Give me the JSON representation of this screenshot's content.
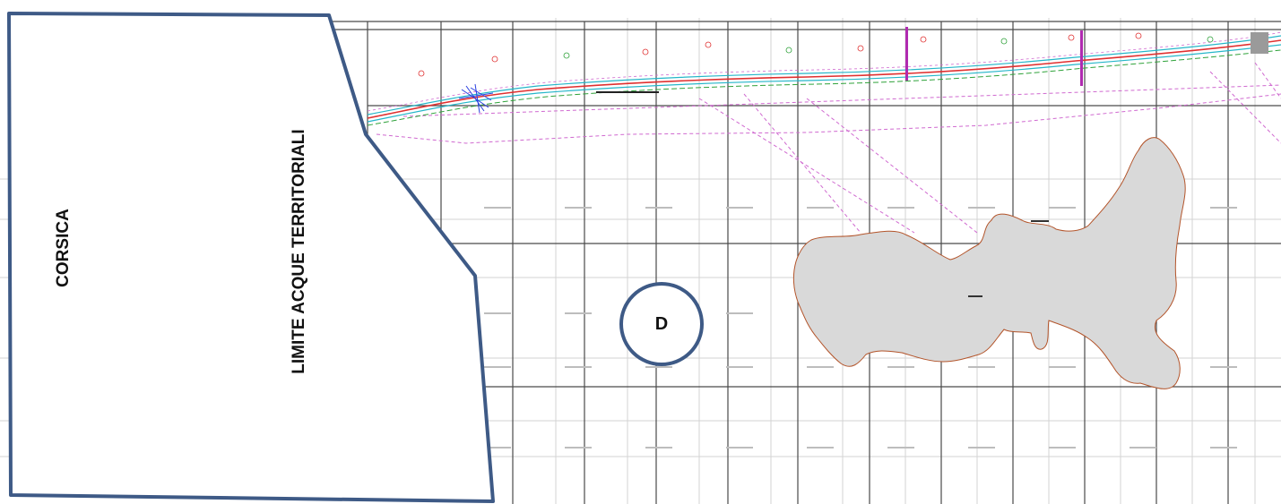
{
  "labels": {
    "corsica": "CORSICA",
    "territorial_limit": "LIMITE ACQUE TERRITORIALI",
    "zone_letter": "D"
  },
  "colors": {
    "outline": "#3e5a86",
    "island_fill": "#d9d9d9",
    "island_edge": "#b3542a",
    "grid_major": "#555555",
    "grid_minor": "#cfcfcf",
    "route_red": "#e03030",
    "route_cyan": "#25b6c9",
    "route_green": "#2fa23a",
    "route_magenta": "#d06ad0",
    "route_blue": "#2a3fe0"
  }
}
